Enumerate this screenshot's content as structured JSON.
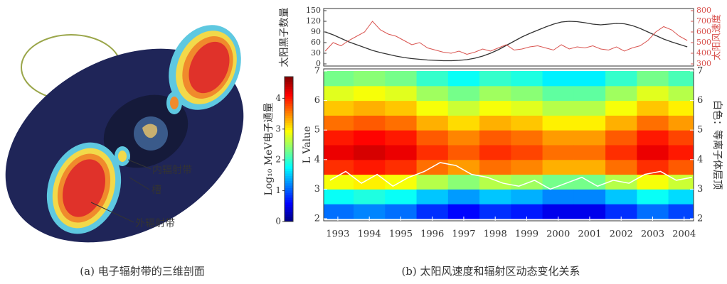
{
  "illustration": {
    "labels": [
      "内辐射带",
      "槽",
      "外辐射带"
    ]
  },
  "captions": [
    "(a) 电子辐射带的三维剖面",
    "(b) 太阳风速度和辐射区动态变化关系"
  ],
  "chart_data": [
    {
      "type": "line",
      "y_label": "太阳黑子数量",
      "y2_label": "太阳风速度",
      "xlim": [
        1992.55,
        2004.3
      ],
      "ylim": [
        0,
        150
      ],
      "yticks": [
        0,
        30,
        60,
        90,
        120,
        150
      ],
      "y2lim": [
        300,
        800
      ],
      "y2ticks": [
        300,
        400,
        500,
        600,
        700,
        800
      ],
      "x": [
        1992.6,
        1992.85,
        1993.1,
        1993.35,
        1993.6,
        1993.85,
        1994.1,
        1994.35,
        1994.6,
        1994.85,
        1995.1,
        1995.35,
        1995.6,
        1995.85,
        1996.1,
        1996.35,
        1996.6,
        1996.85,
        1997.1,
        1997.35,
        1997.6,
        1997.85,
        1998.1,
        1998.35,
        1998.6,
        1998.85,
        1999.1,
        1999.35,
        1999.6,
        1999.85,
        2000.1,
        2000.35,
        2000.6,
        2000.85,
        2001.1,
        2001.35,
        2001.6,
        2001.85,
        2002.1,
        2002.35,
        2002.6,
        2002.85,
        2003.1,
        2003.35,
        2003.6,
        2003.85,
        2004.1
      ],
      "series": [
        {
          "color": "#333333",
          "values": [
            90,
            82,
            72,
            62,
            54,
            46,
            38,
            32,
            27,
            22,
            18,
            15,
            13,
            11,
            10,
            9,
            9,
            10,
            12,
            16,
            22,
            30,
            40,
            52,
            64,
            76,
            86,
            95,
            104,
            112,
            118,
            120,
            119,
            116,
            112,
            110,
            112,
            114,
            113,
            108,
            100,
            90,
            80,
            70,
            62,
            55,
            48
          ]
        },
        {
          "color": "#d9534f",
          "axis": "y2",
          "values": [
            420,
            500,
            470,
            520,
            560,
            600,
            700,
            620,
            580,
            560,
            520,
            480,
            500,
            450,
            430,
            410,
            400,
            420,
            390,
            410,
            440,
            420,
            450,
            480,
            430,
            440,
            460,
            470,
            450,
            430,
            480,
            440,
            460,
            450,
            470,
            440,
            430,
            460,
            420,
            450,
            470,
            520,
            600,
            650,
            620,
            560,
            520
          ]
        }
      ]
    },
    {
      "type": "heatmap",
      "colorbar_label": "Log₁₀ MeV电子通量",
      "y_label": "L Value",
      "y2_label": "白色：等离子体层顶",
      "xlim": [
        1992.55,
        2004.3
      ],
      "ylim": [
        2,
        7
      ],
      "xticks": [
        1993,
        1994,
        1995,
        1996,
        1997,
        1998,
        1999,
        2000,
        2001,
        2002,
        2003,
        2004
      ],
      "yticks": [
        2,
        3,
        4,
        5,
        6,
        7
      ],
      "clim": [
        0,
        4.7
      ],
      "cticks": [
        0,
        1,
        2,
        3,
        4
      ],
      "x_bins": [
        1992.55,
        1993.5,
        1994.5,
        1995.5,
        1996.5,
        1997.5,
        1998.5,
        1999.5,
        2000.5,
        2001.5,
        2002.5,
        2003.5,
        2004.3
      ],
      "y_bins": [
        2,
        2.5,
        3,
        3.5,
        4,
        4.5,
        5,
        5.5,
        6,
        6.5,
        7
      ],
      "z": [
        [
          1.1,
          1.8,
          2.9,
          3.9,
          4.2,
          4.0,
          3.6,
          3.2,
          2.8,
          2.3
        ],
        [
          1.2,
          1.9,
          3.0,
          4.0,
          4.3,
          4.1,
          3.7,
          3.3,
          2.9,
          2.4
        ],
        [
          1.1,
          1.8,
          2.9,
          3.9,
          4.2,
          4.0,
          3.6,
          3.2,
          2.8,
          2.3
        ],
        [
          0.8,
          1.5,
          2.6,
          3.6,
          3.9,
          3.7,
          3.3,
          2.9,
          2.5,
          2.0
        ],
        [
          0.6,
          1.3,
          2.4,
          3.4,
          3.7,
          3.5,
          3.1,
          2.7,
          2.3,
          1.8
        ],
        [
          0.8,
          1.5,
          2.6,
          3.6,
          3.9,
          3.7,
          3.3,
          2.9,
          2.5,
          2.0
        ],
        [
          0.7,
          1.4,
          2.5,
          3.5,
          3.8,
          3.6,
          3.2,
          2.8,
          2.4,
          1.9
        ],
        [
          0.5,
          1.2,
          2.3,
          3.3,
          3.6,
          3.4,
          3.0,
          2.6,
          2.2,
          1.7
        ],
        [
          0.5,
          1.2,
          2.3,
          3.3,
          3.6,
          3.4,
          3.0,
          2.6,
          2.2,
          1.7
        ],
        [
          0.8,
          1.5,
          2.6,
          3.6,
          3.9,
          3.7,
          3.3,
          2.9,
          2.5,
          2.0
        ],
        [
          1.1,
          1.8,
          2.9,
          3.9,
          4.2,
          4.0,
          3.6,
          3.2,
          2.8,
          2.3
        ],
        [
          0.9,
          1.6,
          2.7,
          3.7,
          4.0,
          3.8,
          3.4,
          3.0,
          2.6,
          2.1
        ]
      ],
      "overlay": {
        "color": "#ffffff",
        "x": [
          1992.75,
          1993.25,
          1993.75,
          1994.25,
          1994.75,
          1995.25,
          1995.75,
          1996.25,
          1996.75,
          1997.25,
          1997.75,
          1998.25,
          1998.75,
          1999.25,
          1999.75,
          2000.25,
          2000.75,
          2001.25,
          2001.75,
          2002.25,
          2002.75,
          2003.25,
          2003.75,
          2004.25
        ],
        "values": [
          3.3,
          3.6,
          3.2,
          3.5,
          3.1,
          3.4,
          3.6,
          3.9,
          3.8,
          3.5,
          3.4,
          3.2,
          3.1,
          3.3,
          3.0,
          3.2,
          3.4,
          3.1,
          3.3,
          3.2,
          3.5,
          3.6,
          3.3,
          3.4
        ]
      }
    }
  ]
}
